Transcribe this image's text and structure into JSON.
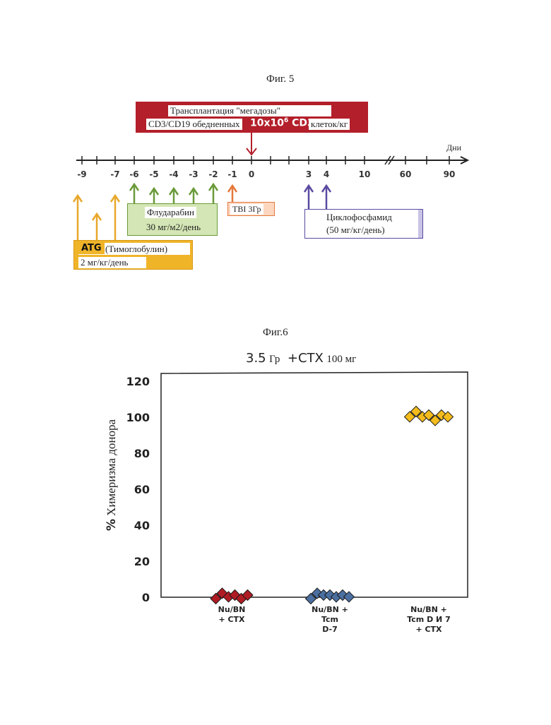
{
  "fig5": {
    "caption": "Фиг. 5",
    "transplant": {
      "line1": "Трансплантация \"мегадозы\"",
      "line2a": "CD3/CD19 обедненных",
      "line2b": "10x10",
      "line2b_sup": "6",
      "line2c": "CD34",
      "line2d": "клеток/кг"
    },
    "axis_label": "Дни",
    "ticks": [
      "-9",
      "-7",
      "-6",
      "-5",
      "-4",
      "-3",
      "-2",
      "-1",
      "0",
      "3",
      "4",
      "10",
      "60",
      "90"
    ],
    "fludarabine": {
      "line1": "Флударабин",
      "line2": "30 мг/м2/день"
    },
    "tbi": "TBI 3Гр",
    "cyclophosphamide": {
      "line1": "Циклофосфамид",
      "line2": "(50 мг/кг/день)"
    },
    "atg": {
      "bold": "ATG",
      "name": "(Тимоглобулин)",
      "dose": "2 мг/кг/день"
    },
    "colors": {
      "transplant": "#b31f2a",
      "fludarabine": "#6a9a3a",
      "tbi": "#e5783a",
      "cyclophosphamide": "#5a4aa0",
      "atg": "#e8a72a"
    }
  },
  "fig6": {
    "caption": "Фиг.6",
    "title_a": "3.5",
    "title_b": "Гр",
    "title_c": "+CTX",
    "title_d": "100 мг",
    "ylabel_sym": "%",
    "ylabel": "Химеризма донора",
    "chart_data": {
      "type": "scatter",
      "title": "3.5 Гр +CTX 100 мг",
      "ylabel": "% Химеризма донора",
      "ylim": [
        0,
        120
      ],
      "yticks": [
        0,
        20,
        40,
        60,
        80,
        100,
        120
      ],
      "categories": [
        "Nu/BN\n+ CTX",
        "Nu/BN +\nTcm\nD-7",
        "Nu/BN +\nTcm D И 7\n+ CTX"
      ],
      "series": [
        {
          "values": [
            0,
            1,
            1,
            0,
            0,
            0
          ],
          "color": "#b01c24"
        },
        {
          "values": [
            0,
            1,
            2,
            0,
            1,
            0,
            1
          ],
          "color": "#4a6fa0"
        },
        {
          "values": [
            101,
            102,
            101,
            100,
            99,
            100,
            101
          ],
          "color": "#f3bb1c"
        }
      ]
    },
    "xcat": [
      [
        "Nu/BN",
        "+ CTX"
      ],
      [
        "Nu/BN +",
        "Tcm",
        "D-7"
      ],
      [
        "Nu/BN +",
        "Tcm D И 7",
        "+ CTX"
      ]
    ]
  }
}
